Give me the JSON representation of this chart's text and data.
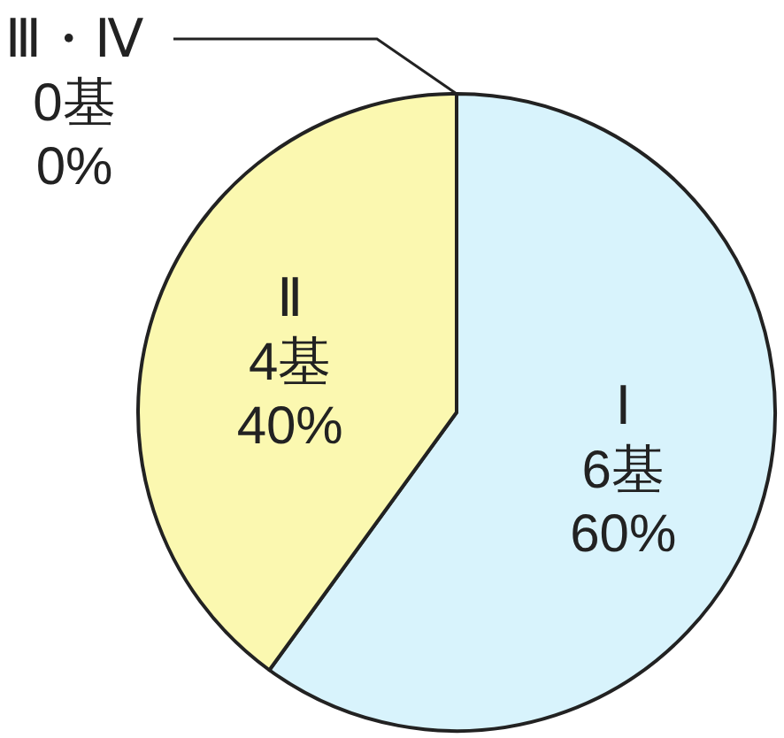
{
  "chart_data": {
    "type": "pie",
    "categories": [
      "Ⅰ",
      "Ⅱ",
      "Ⅲ・Ⅳ"
    ],
    "values": [
      6,
      4,
      0
    ],
    "value_labels": [
      "6基\n60%",
      "4基\n40%",
      "0基\n0%"
    ],
    "colors": [
      "#d8f3fc",
      "#fbf8b0",
      "#222222"
    ]
  }
}
